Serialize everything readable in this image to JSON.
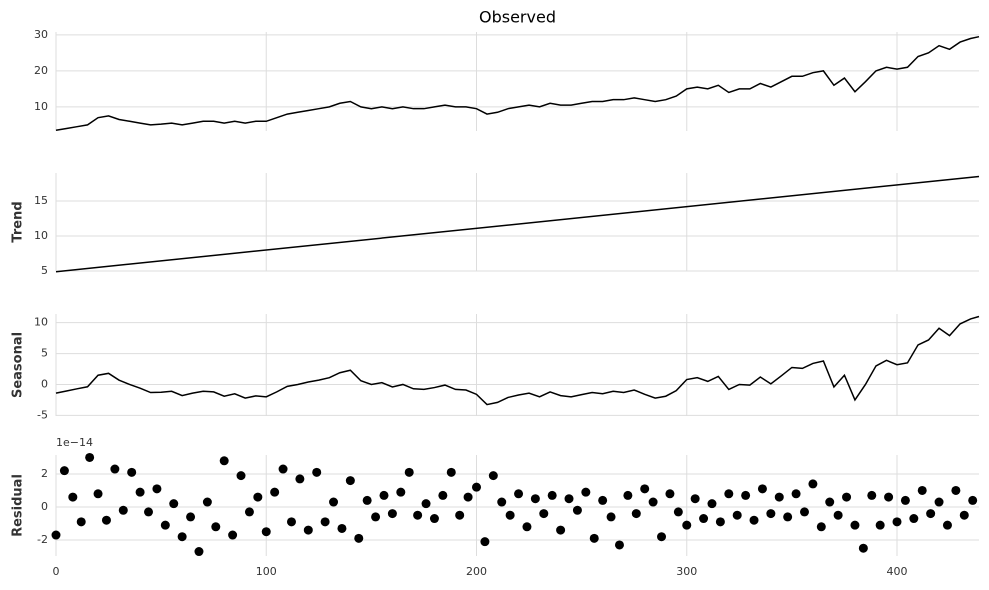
{
  "chart_data": [
    {
      "type": "line",
      "title": "Observed",
      "color": "#000000",
      "grid": true,
      "x": [
        0,
        5,
        10,
        15,
        20,
        25,
        30,
        35,
        40,
        45,
        50,
        55,
        60,
        65,
        70,
        75,
        80,
        85,
        90,
        95,
        100,
        105,
        110,
        115,
        120,
        125,
        130,
        135,
        140,
        145,
        150,
        155,
        160,
        165,
        170,
        175,
        180,
        185,
        190,
        195,
        200,
        205,
        210,
        215,
        220,
        225,
        230,
        235,
        240,
        245,
        250,
        255,
        260,
        265,
        270,
        275,
        280,
        285,
        290,
        295,
        300,
        305,
        310,
        315,
        320,
        325,
        330,
        335,
        340,
        345,
        350,
        355,
        360,
        365,
        370,
        375,
        380,
        385,
        390,
        395,
        400,
        405,
        410,
        415,
        420,
        425,
        430,
        435,
        439
      ],
      "values": [
        3.5,
        4,
        4.5,
        5,
        7,
        7.5,
        6.5,
        6,
        5.5,
        5,
        5.2,
        5.5,
        5,
        5.5,
        6,
        6,
        5.5,
        6,
        5.5,
        6,
        6,
        7,
        8,
        8.5,
        9,
        9.5,
        10,
        11,
        11.5,
        10,
        9.5,
        10,
        9.5,
        10,
        9.5,
        9.5,
        10,
        10.5,
        10,
        10,
        9.5,
        8,
        8.5,
        9.5,
        10,
        10.5,
        10,
        11,
        10.5,
        10.5,
        11,
        11.5,
        11.5,
        12,
        12,
        12.5,
        12,
        11.5,
        12,
        13,
        15,
        15.5,
        15,
        16,
        14,
        15,
        15,
        16.5,
        15.5,
        17,
        18.5,
        18.5,
        19.5,
        20,
        16,
        18,
        14.2,
        17,
        20,
        21,
        20.5,
        21,
        24,
        25,
        27,
        26,
        28,
        29,
        29.5
      ],
      "xlim": [
        0,
        439
      ],
      "xticks": [
        0,
        100,
        200,
        300,
        400
      ],
      "ylim": [
        3.3,
        30.8
      ],
      "yticks": [
        10,
        20,
        30
      ]
    },
    {
      "type": "line",
      "ylabel": "Trend",
      "color": "#000000",
      "grid": true,
      "x": [
        0,
        439
      ],
      "values": [
        4.9,
        18.5
      ],
      "xlim": [
        0,
        439
      ],
      "xticks": [
        0,
        100,
        200,
        300,
        400
      ],
      "ylim": [
        5,
        19
      ],
      "yticks": [
        5,
        10,
        15
      ]
    },
    {
      "type": "line",
      "ylabel": "Seasonal",
      "color": "#000000",
      "grid": true,
      "x": [
        0,
        5,
        10,
        15,
        20,
        25,
        30,
        35,
        40,
        45,
        50,
        55,
        60,
        65,
        70,
        75,
        80,
        85,
        90,
        95,
        100,
        105,
        110,
        115,
        120,
        125,
        130,
        135,
        140,
        145,
        150,
        155,
        160,
        165,
        170,
        175,
        180,
        185,
        190,
        195,
        200,
        205,
        210,
        215,
        220,
        225,
        230,
        235,
        240,
        245,
        250,
        255,
        260,
        265,
        270,
        275,
        280,
        285,
        290,
        295,
        300,
        305,
        310,
        315,
        320,
        325,
        330,
        335,
        340,
        345,
        350,
        355,
        360,
        365,
        370,
        375,
        380,
        385,
        390,
        395,
        400,
        405,
        410,
        415,
        420,
        425,
        430,
        435,
        439
      ],
      "values": [
        -1.4,
        -1.05,
        -0.7,
        -0.37,
        1.5,
        1.8,
        0.7,
        0,
        -0.6,
        -1.3,
        -1.25,
        -1.1,
        -1.8,
        -1.4,
        -1.1,
        -1.2,
        -1.9,
        -1.5,
        -2.2,
        -1.85,
        -2,
        -1.2,
        -0.3,
        0,
        0.4,
        0.7,
        1.1,
        1.9,
        2.3,
        0.6,
        0,
        0.3,
        -0.4,
        0,
        -0.7,
        -0.8,
        -0.5,
        -0.1,
        -0.8,
        -0.9,
        -1.6,
        -3.25,
        -2.9,
        -2.1,
        -1.7,
        -1.4,
        -2,
        -1.2,
        -1.8,
        -2,
        -1.65,
        -1.3,
        -1.5,
        -1.1,
        -1.3,
        -0.9,
        -1.6,
        -2.2,
        -1.9,
        -1,
        0.8,
        1.1,
        0.5,
        1.3,
        -0.8,
        0,
        -0.1,
        1.2,
        0.1,
        1.4,
        2.75,
        2.6,
        3.4,
        3.8,
        -0.4,
        1.5,
        -2.5,
        0,
        3,
        3.9,
        3.2,
        3.5,
        6.4,
        7.2,
        9.1,
        7.9,
        9.8,
        10.6,
        11
      ],
      "xlim": [
        0,
        439
      ],
      "xticks": [
        0,
        100,
        200,
        300,
        400
      ],
      "ylim": [
        -5.1,
        11.4
      ],
      "yticks": [
        -5,
        0,
        5,
        10
      ]
    },
    {
      "type": "scatter",
      "ylabel": "Residual",
      "offset_label": "1e−14",
      "color": "#000000",
      "grid": true,
      "x": [
        0,
        4,
        8,
        12,
        16,
        20,
        24,
        28,
        32,
        36,
        40,
        44,
        48,
        52,
        56,
        60,
        64,
        68,
        72,
        76,
        80,
        84,
        88,
        92,
        96,
        100,
        104,
        108,
        112,
        116,
        120,
        124,
        128,
        132,
        136,
        140,
        144,
        148,
        152,
        156,
        160,
        164,
        168,
        172,
        176,
        180,
        184,
        188,
        192,
        196,
        200,
        204,
        208,
        212,
        216,
        220,
        224,
        228,
        232,
        236,
        240,
        244,
        248,
        252,
        256,
        260,
        264,
        268,
        272,
        276,
        280,
        284,
        288,
        292,
        296,
        300,
        304,
        308,
        312,
        316,
        320,
        324,
        328,
        332,
        336,
        340,
        344,
        348,
        352,
        356,
        360,
        364,
        368,
        372,
        376,
        380,
        384,
        388,
        392,
        396,
        400,
        404,
        408,
        412,
        416,
        420,
        424,
        428,
        432,
        436
      ],
      "values": [
        -1.7,
        2.2,
        0.6,
        -0.9,
        3,
        0.8,
        -0.8,
        2.3,
        -0.2,
        2.1,
        0.9,
        -0.3,
        1.1,
        -1.1,
        0.2,
        -1.8,
        -0.6,
        -2.7,
        0.3,
        -1.2,
        2.8,
        -1.7,
        1.9,
        -0.3,
        0.6,
        -1.5,
        0.9,
        2.3,
        -0.9,
        1.7,
        -1.4,
        2.1,
        -0.9,
        0.3,
        -1.3,
        1.6,
        -1.9,
        0.4,
        -0.6,
        0.7,
        -0.4,
        0.9,
        2.1,
        -0.5,
        0.2,
        -0.7,
        0.7,
        2.1,
        -0.5,
        0.6,
        1.2,
        -2.1,
        1.9,
        0.3,
        -0.5,
        0.8,
        -1.2,
        0.5,
        -0.4,
        0.7,
        -1.4,
        0.5,
        -0.2,
        0.9,
        -1.9,
        0.4,
        -0.6,
        -2.3,
        0.7,
        -0.4,
        1.1,
        0.3,
        -1.8,
        0.8,
        -0.3,
        -1.1,
        0.5,
        -0.7,
        0.2,
        -0.9,
        0.8,
        -0.5,
        0.7,
        -0.8,
        1.1,
        -0.4,
        0.6,
        -0.6,
        0.8,
        -0.3,
        1.4,
        -1.2,
        0.3,
        -0.5,
        0.6,
        -1.1,
        -2.5,
        0.7,
        -1.1,
        0.6,
        -0.9,
        0.4,
        -0.7,
        1,
        -0.4,
        0.3,
        -1.1,
        1,
        -0.5,
        0.4
      ],
      "xlim": [
        0,
        439
      ],
      "xticks": [
        0,
        100,
        200,
        300,
        400
      ],
      "ylim": [
        -2.97,
        3.15
      ],
      "yticks": [
        -2,
        0,
        2
      ]
    }
  ]
}
